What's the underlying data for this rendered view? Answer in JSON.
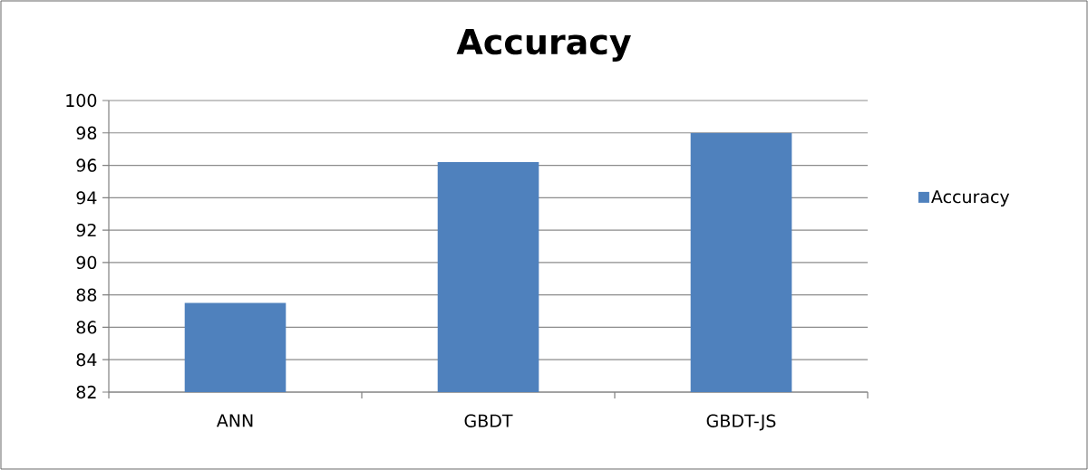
{
  "chart_data": {
    "type": "bar",
    "title": "Accuracy",
    "categories": [
      "ANN",
      "GBDT",
      "GBDT-JS"
    ],
    "series": [
      {
        "name": "Accuracy",
        "color": "#4f81bd",
        "values": [
          87.5,
          96.2,
          98.0
        ]
      }
    ],
    "ylim": [
      82,
      100
    ],
    "yticks": [
      82,
      84,
      86,
      88,
      90,
      92,
      94,
      96,
      98,
      100
    ],
    "grid": "y",
    "legend": "right"
  }
}
